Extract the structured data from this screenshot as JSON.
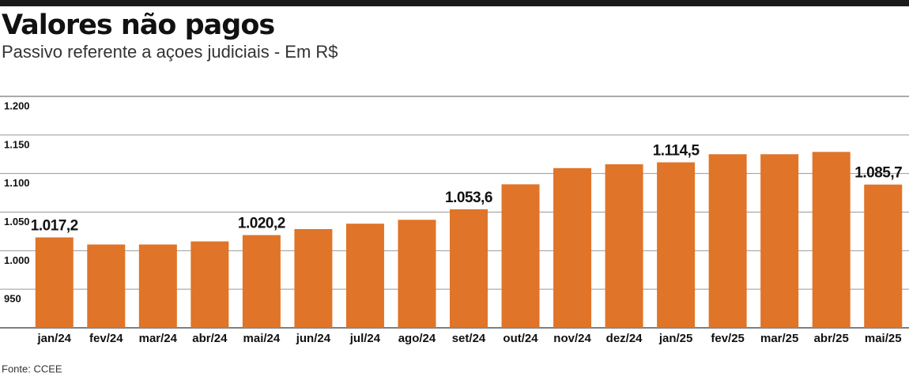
{
  "chart_data": {
    "type": "bar",
    "title": "Valores não pagos",
    "subtitle": "Passivo referente a açoes judiciais - Em R$",
    "source": "Fonte: CCEE",
    "categories": [
      "jan/24",
      "fev/24",
      "mar/24",
      "abr/24",
      "mai/24",
      "jun/24",
      "jul/24",
      "ago/24",
      "set/24",
      "out/24",
      "nov/24",
      "dez/24",
      "jan/25",
      "fev/25",
      "mar/25",
      "abr/25",
      "mai/25"
    ],
    "values": [
      1017.2,
      1008,
      1008,
      1012,
      1020.2,
      1028,
      1035,
      1040,
      1053.6,
      1086,
      1107,
      1112,
      1114.5,
      1125,
      1125,
      1128,
      1085.7
    ],
    "value_labels": [
      "1.017,2",
      null,
      null,
      null,
      "1.020,2",
      null,
      null,
      null,
      "1.053,6",
      null,
      null,
      null,
      "1.114,5",
      null,
      null,
      null,
      "1.085,7"
    ],
    "color": "#e07428",
    "ylim": [
      900,
      1200
    ],
    "yticks": [
      950,
      {
        "value": 1000,
        "label": "1.000"
      },
      {
        "value": 1050,
        "label": "1.050"
      },
      {
        "value": 1100,
        "label": "1.100"
      },
      {
        "value": 1150,
        "label": "1.150"
      },
      {
        "value": 1200,
        "label": "1.200"
      }
    ],
    "grid": true
  }
}
